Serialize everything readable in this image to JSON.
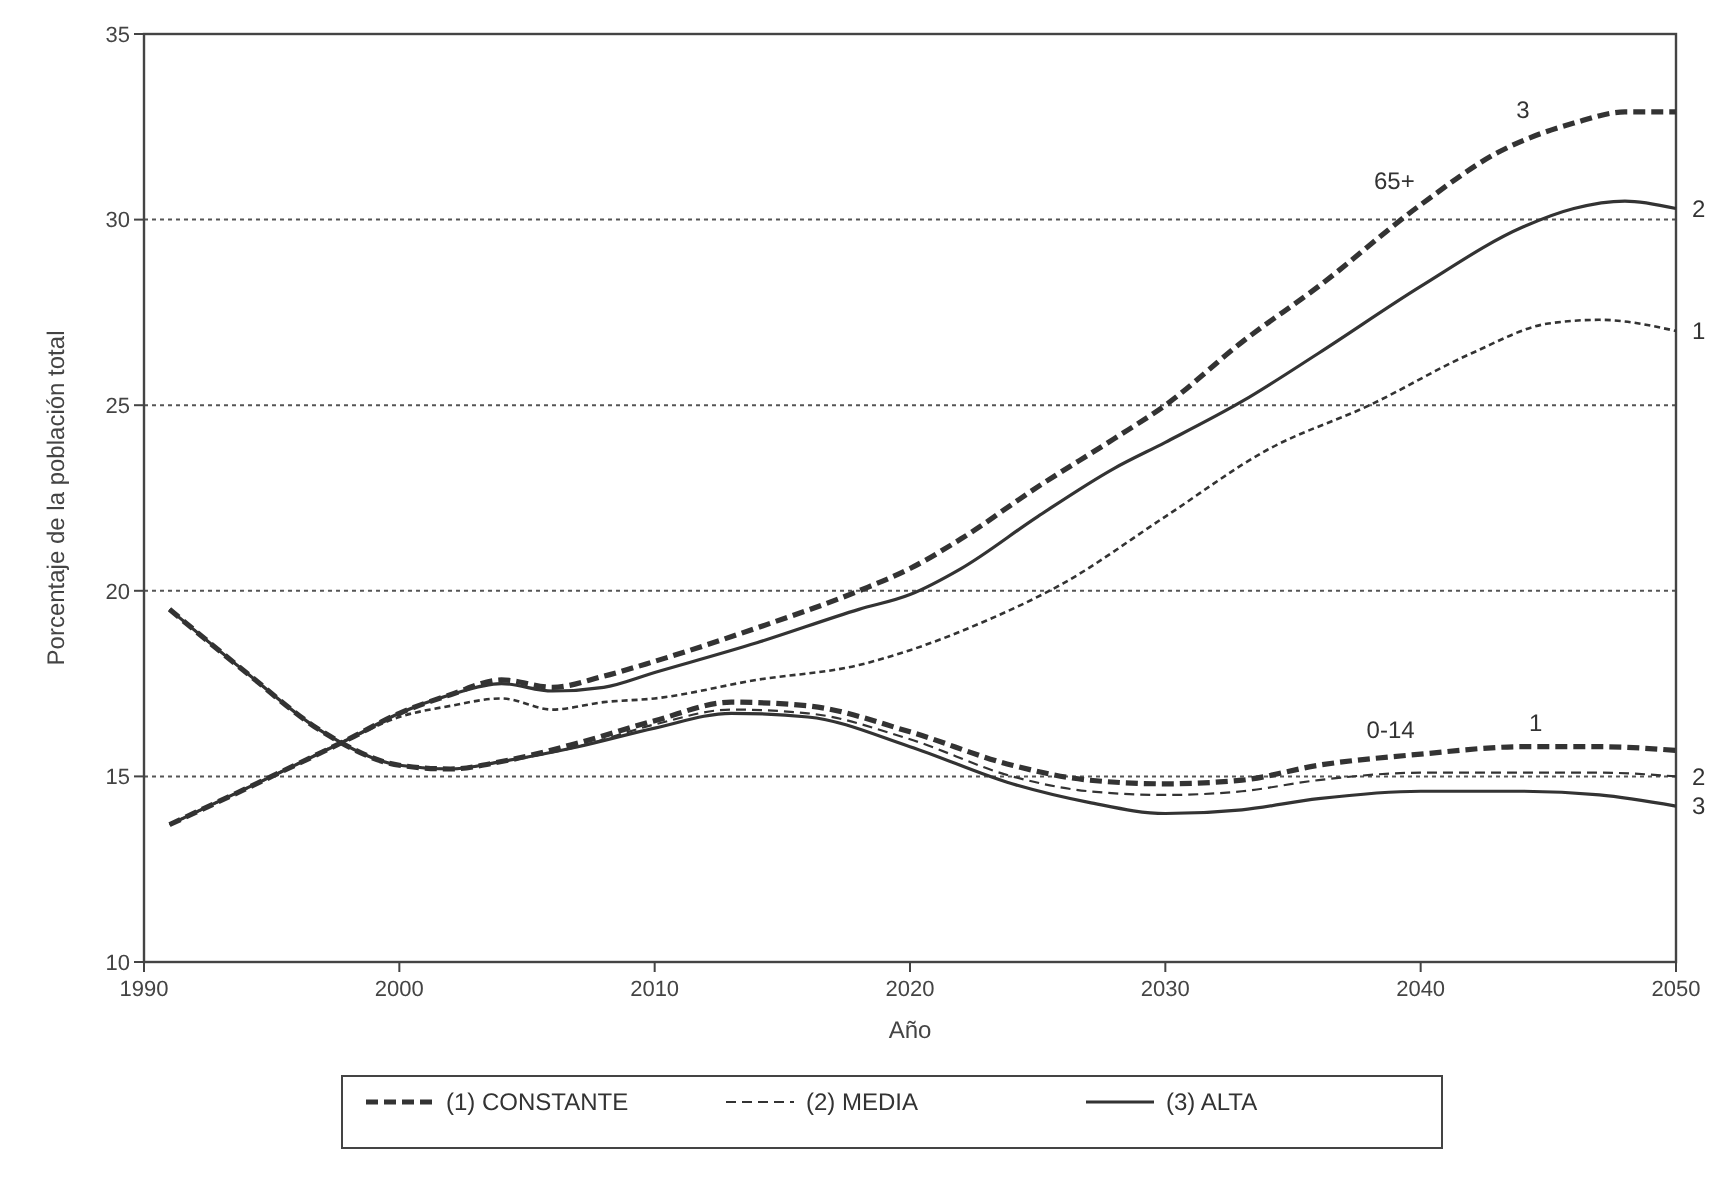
{
  "chart_data": {
    "type": "line",
    "xlabel": "Año",
    "ylabel": "Porcentaje de la población total",
    "xlim": [
      1990,
      2050
    ],
    "xticks": [
      1990,
      2000,
      2010,
      2020,
      2030,
      2040,
      2050
    ],
    "ylim": [
      10,
      35
    ],
    "yticks": [
      10,
      15,
      20,
      25,
      30,
      35
    ],
    "grid": "y",
    "legend": "bottom",
    "marker": "none",
    "series": [
      {
        "name": "(1) CONSTANTE",
        "color": "#333333",
        "line_style": "dashed",
        "x": [
          1991,
          1994,
          1997,
          2000,
          2002,
          2004,
          2007,
          2010,
          2013,
          2016,
          2020,
          2024,
          2027,
          2030,
          2033,
          2036,
          2040,
          2044,
          2047,
          2050
        ],
        "values": [
          19.5,
          17.8,
          16.2,
          15.3,
          15.2,
          15.4,
          15.9,
          16.5,
          17.0,
          16.9,
          16.2,
          15.3,
          14.9,
          14.8,
          14.9,
          15.3,
          15.6,
          15.8,
          15.8,
          15.7
        ]
      },
      {
        "name": "(2) MEDIA",
        "color": "#333333",
        "line_style": "dashed",
        "x": [
          1991,
          1994,
          1997,
          2000,
          2002,
          2004,
          2007,
          2010,
          2013,
          2016,
          2020,
          2024,
          2027,
          2030,
          2033,
          2036,
          2040,
          2044,
          2047,
          2050
        ],
        "values": [
          19.5,
          17.8,
          16.2,
          15.3,
          15.2,
          15.4,
          15.8,
          16.4,
          16.8,
          16.7,
          16.0,
          15.0,
          14.6,
          14.5,
          14.6,
          14.9,
          15.1,
          15.1,
          15.1,
          15.0
        ]
      },
      {
        "name": "(3) ALTA",
        "color": "#333333",
        "line_style": "solid",
        "x": [
          1991,
          1994,
          1997,
          2000,
          2002,
          2004,
          2007,
          2010,
          2013,
          2016,
          2020,
          2024,
          2027,
          2030,
          2033,
          2036,
          2040,
          2044,
          2047,
          2050
        ],
        "values": [
          19.5,
          17.8,
          16.2,
          15.3,
          15.2,
          15.4,
          15.8,
          16.3,
          16.7,
          16.6,
          15.8,
          14.8,
          14.3,
          14.0,
          14.1,
          14.4,
          14.6,
          14.6,
          14.5,
          14.2
        ]
      },
      {
        "color": "#333333",
        "line_style": "dashed",
        "x": [
          1991,
          1995,
          1998,
          2000,
          2002,
          2004,
          2006,
          2008,
          2010,
          2014,
          2018,
          2020,
          2022,
          2025,
          2028,
          2030,
          2033,
          2036,
          2040,
          2043,
          2046,
          2048,
          2050
        ],
        "values": [
          13.7,
          15.0,
          16.0,
          16.7,
          17.2,
          17.6,
          17.4,
          17.7,
          18.1,
          19.0,
          20.0,
          20.6,
          21.4,
          22.8,
          24.1,
          25.0,
          26.7,
          28.2,
          30.4,
          31.8,
          32.6,
          32.9,
          32.9
        ]
      },
      {
        "color": "#333333",
        "line_style": "solid",
        "x": [
          1991,
          1995,
          1998,
          2000,
          2002,
          2004,
          2006,
          2008,
          2010,
          2014,
          2018,
          2020,
          2022,
          2025,
          2028,
          2030,
          2033,
          2036,
          2040,
          2044,
          2046,
          2048,
          2050
        ],
        "values": [
          13.7,
          15.0,
          16.0,
          16.7,
          17.2,
          17.5,
          17.3,
          17.4,
          17.8,
          18.6,
          19.5,
          19.9,
          20.6,
          22.0,
          23.3,
          24.0,
          25.1,
          26.4,
          28.2,
          29.8,
          30.3,
          30.5,
          30.3
        ]
      },
      {
        "color": "#333333",
        "line_style": "dotted",
        "x": [
          1991,
          1995,
          1998,
          2000,
          2002,
          2004,
          2006,
          2008,
          2010,
          2014,
          2018,
          2020,
          2023,
          2026,
          2030,
          2034,
          2038,
          2042,
          2045,
          2047,
          2050
        ],
        "values": [
          13.7,
          15.0,
          16.0,
          16.6,
          16.9,
          17.1,
          16.8,
          17.0,
          17.1,
          17.6,
          18.0,
          18.4,
          19.2,
          20.2,
          22.0,
          23.8,
          25.0,
          26.4,
          27.2,
          27.3,
          27.0
        ]
      }
    ],
    "annotations": [
      {
        "text": "3",
        "x": 2044.5,
        "y": 32.3
      },
      {
        "text": "65+",
        "x": 2040,
        "y": 30.4
      },
      {
        "text": "2",
        "x": 2050,
        "y": 30.3
      },
      {
        "text": "1",
        "x": 2050,
        "y": 27.0
      },
      {
        "text": "0-14",
        "x": 2040,
        "y": 15.6
      },
      {
        "text": "1",
        "x": 2045,
        "y": 15.8
      },
      {
        "text": "2",
        "x": 2050,
        "y": 15.0
      },
      {
        "text": "3",
        "x": 2050,
        "y": 14.2
      }
    ]
  }
}
